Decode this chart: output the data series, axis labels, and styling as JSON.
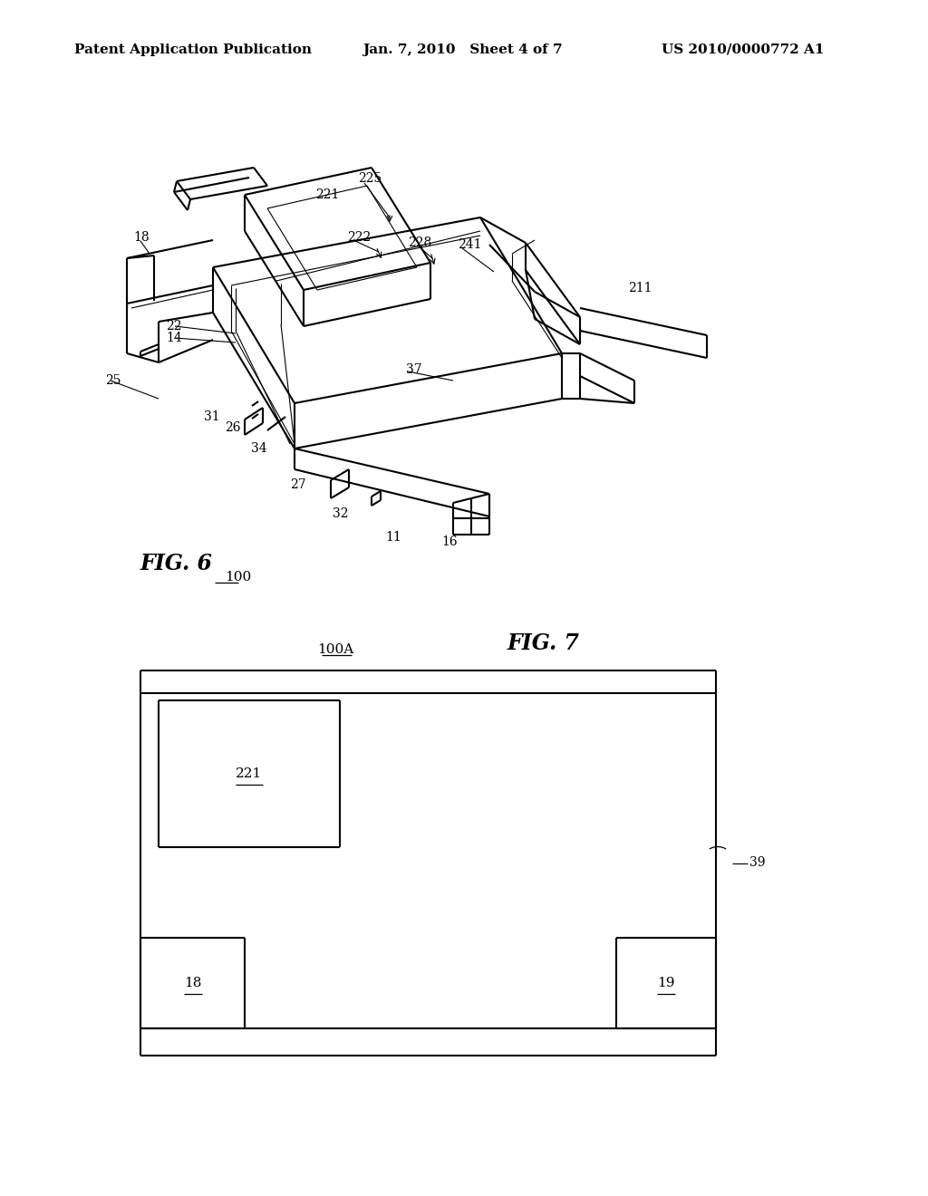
{
  "bg_color": "#ffffff",
  "fig_width": 10.24,
  "fig_height": 13.2,
  "header_left": "Patent Application Publication",
  "header_center": "Jan. 7, 2010   Sheet 4 of 7",
  "header_right": "US 2010/0000772 A1",
  "fig6_label": "FIG. 6",
  "fig7_label": "FIG. 7",
  "fig6_number": "100",
  "fig7_number": "100A",
  "line_color": "#000000",
  "line_width": 1.5,
  "thin_line": 0.8,
  "font_size_header": 11,
  "font_size_ref": 10,
  "font_size_fig": 17
}
